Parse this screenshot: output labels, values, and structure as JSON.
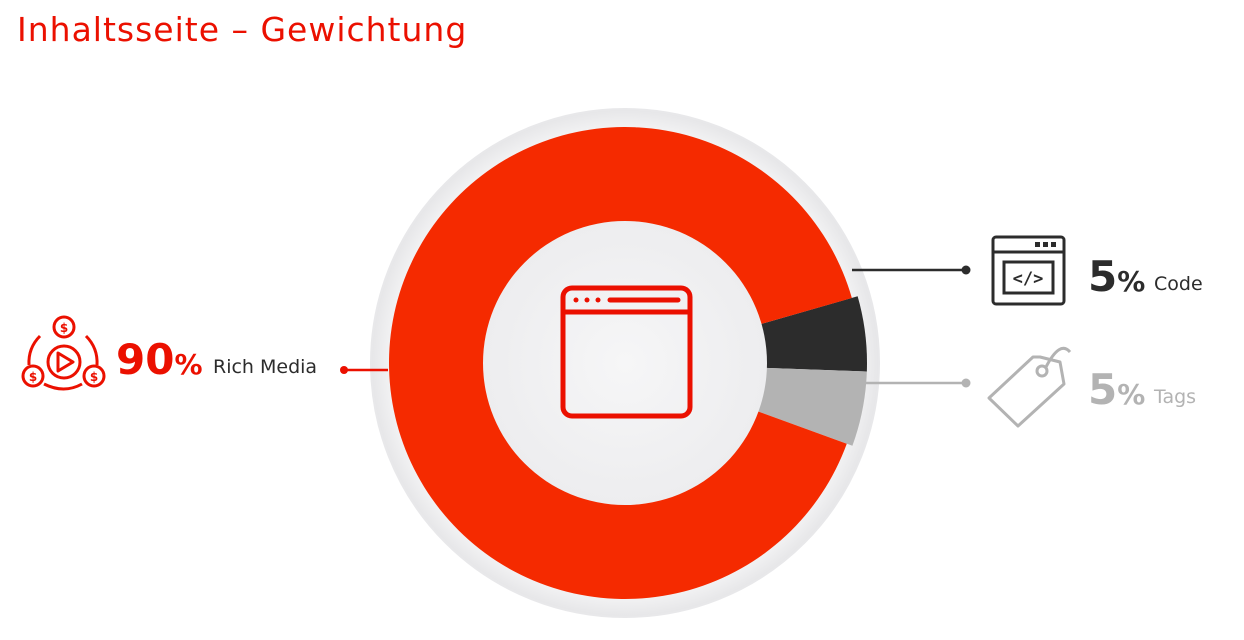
{
  "page": {
    "title": "Inhaltsseite – Gewichtung"
  },
  "center_icon": "browser-window-icon",
  "colors": {
    "title": "#eb1000",
    "rich_media": "#f52a00",
    "code": "#2c2c2c",
    "tags": "#b3b3b3",
    "inner": "#f2f2f4",
    "ring_bg": "#f4f4f5"
  },
  "chart_data": {
    "type": "pie",
    "title": "Inhaltsseite – Gewichtung",
    "series": [
      {
        "category": "Rich Media",
        "value": 90,
        "value_label": "90",
        "unit": "%",
        "icon": "video-money-icon",
        "color": "#f52a00"
      },
      {
        "category": "Code",
        "value": 5,
        "value_label": "5",
        "unit": "%",
        "icon": "code-window-icon",
        "color": "#2c2c2c"
      },
      {
        "category": "Tags",
        "value": 5,
        "value_label": "5",
        "unit": "%",
        "icon": "price-tag-icon",
        "color": "#b3b3b3"
      }
    ]
  }
}
